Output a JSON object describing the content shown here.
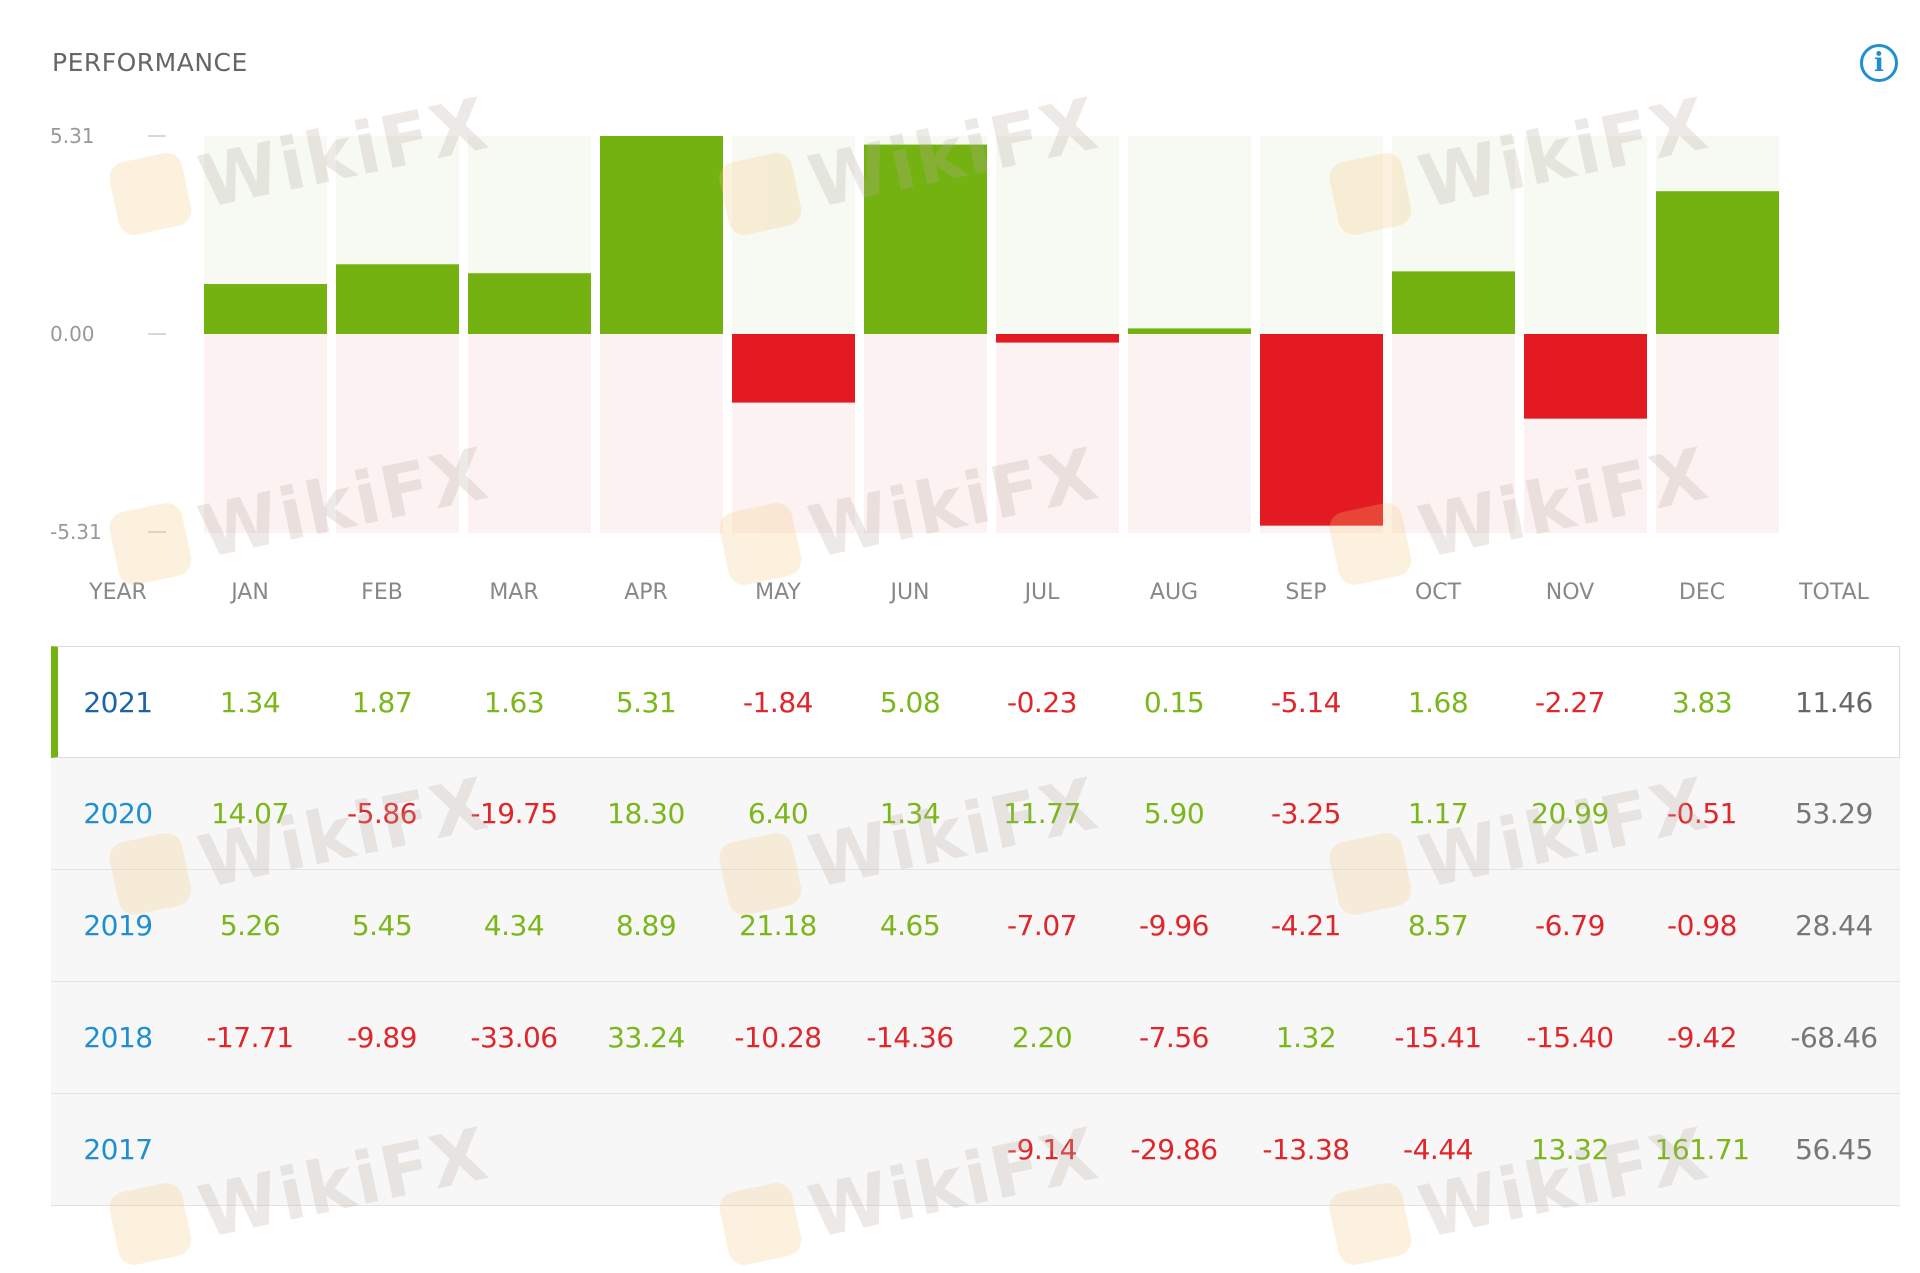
{
  "header": {
    "title": "PERFORMANCE",
    "info_icon": "info-circle-icon",
    "info_glyph": "i"
  },
  "watermark_text": "WikiFX",
  "colors": {
    "positive": "#74b211",
    "negative": "#e31a22",
    "positive_text": "#7bb71b",
    "negative_text": "#e0262b",
    "positive_bg": "#f7faf2",
    "negative_bg": "#fdf2f2",
    "year_link": "#1f8fd0",
    "active_accent": "#74b211"
  },
  "chart_data": {
    "type": "bar",
    "categories": [
      "JAN",
      "FEB",
      "MAR",
      "APR",
      "MAY",
      "JUN",
      "JUL",
      "AUG",
      "SEP",
      "OCT",
      "NOV",
      "DEC"
    ],
    "values": [
      1.34,
      1.87,
      1.63,
      5.31,
      -1.84,
      5.08,
      -0.23,
      0.15,
      -5.14,
      1.68,
      -2.27,
      3.83
    ],
    "ylim": [
      -5.31,
      5.31
    ],
    "yticks": [
      "5.31",
      "0.00",
      "-5.31"
    ],
    "title": "",
    "xlabel": "",
    "ylabel": "",
    "grid": false
  },
  "table": {
    "headers": [
      "YEAR",
      "JAN",
      "FEB",
      "MAR",
      "APR",
      "MAY",
      "JUN",
      "JUL",
      "AUG",
      "SEP",
      "OCT",
      "NOV",
      "DEC",
      "TOTAL"
    ],
    "rows": [
      {
        "year": "2021",
        "active": true,
        "values": [
          "1.34",
          "1.87",
          "1.63",
          "5.31",
          "-1.84",
          "5.08",
          "-0.23",
          "0.15",
          "-5.14",
          "1.68",
          "-2.27",
          "3.83"
        ],
        "total": "11.46"
      },
      {
        "year": "2020",
        "active": false,
        "values": [
          "14.07",
          "-5.86",
          "-19.75",
          "18.30",
          "6.40",
          "1.34",
          "11.77",
          "5.90",
          "-3.25",
          "1.17",
          "20.99",
          "-0.51"
        ],
        "total": "53.29"
      },
      {
        "year": "2019",
        "active": false,
        "values": [
          "5.26",
          "5.45",
          "4.34",
          "8.89",
          "21.18",
          "4.65",
          "-7.07",
          "-9.96",
          "-4.21",
          "8.57",
          "-6.79",
          "-0.98"
        ],
        "total": "28.44"
      },
      {
        "year": "2018",
        "active": false,
        "values": [
          "-17.71",
          "-9.89",
          "-33.06",
          "33.24",
          "-10.28",
          "-14.36",
          "2.20",
          "-7.56",
          "1.32",
          "-15.41",
          "-15.40",
          "-9.42"
        ],
        "total": "-68.46"
      },
      {
        "year": "2017",
        "active": false,
        "values": [
          "",
          "",
          "",
          "",
          "",
          "",
          "-9.14",
          "-29.86",
          "-13.38",
          "-4.44",
          "13.32",
          "161.71"
        ],
        "total": "56.45"
      }
    ]
  }
}
